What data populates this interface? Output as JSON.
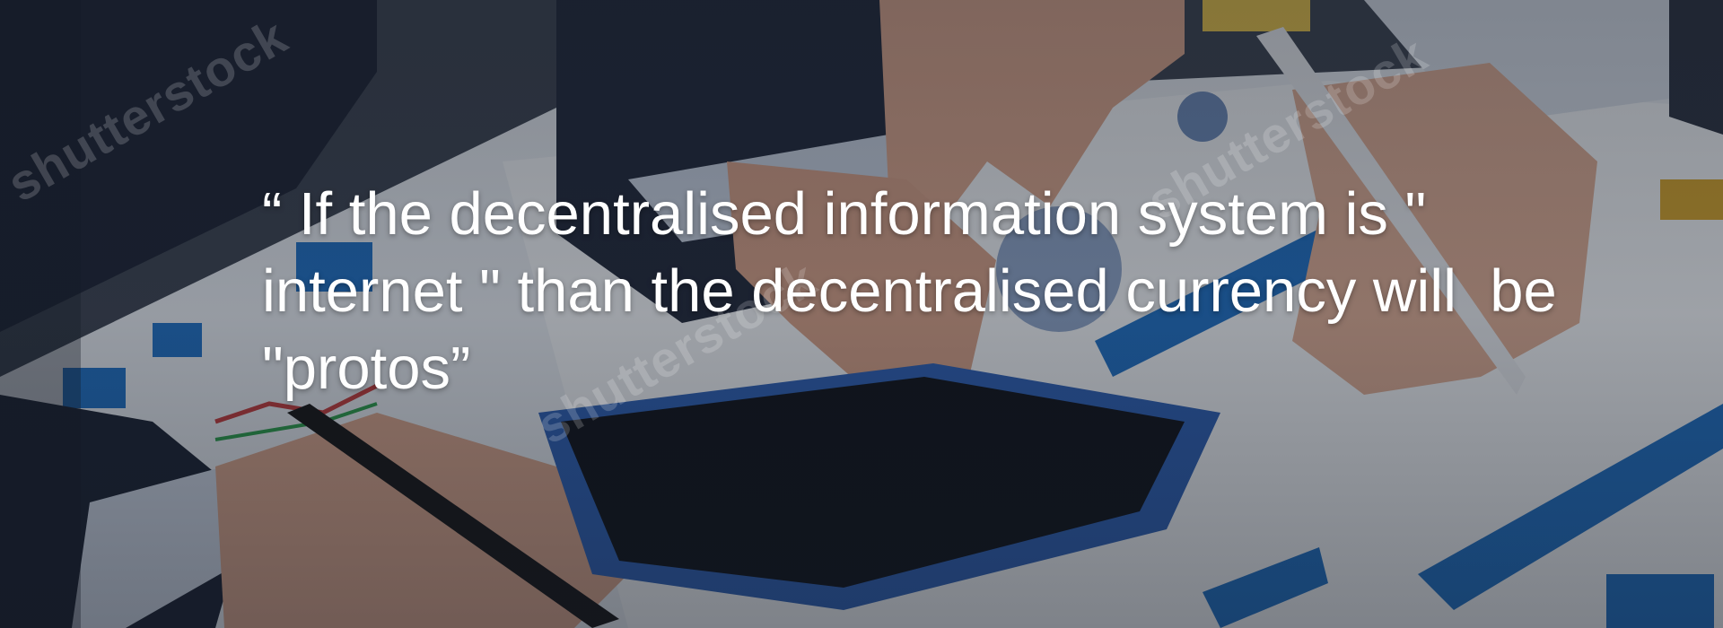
{
  "hero": {
    "quote_lines": [
      "“ If the decentralised information system is \"",
      "internet \" than the decentralised currency will  be",
      "\"protos”"
    ],
    "watermark_text": "shutterstock"
  },
  "colors": {
    "overlay": "#141923",
    "text": "#ffffff",
    "paper": "#e9eef4",
    "chart_blue": "#1d6fc4",
    "suit": "#1b2233"
  }
}
